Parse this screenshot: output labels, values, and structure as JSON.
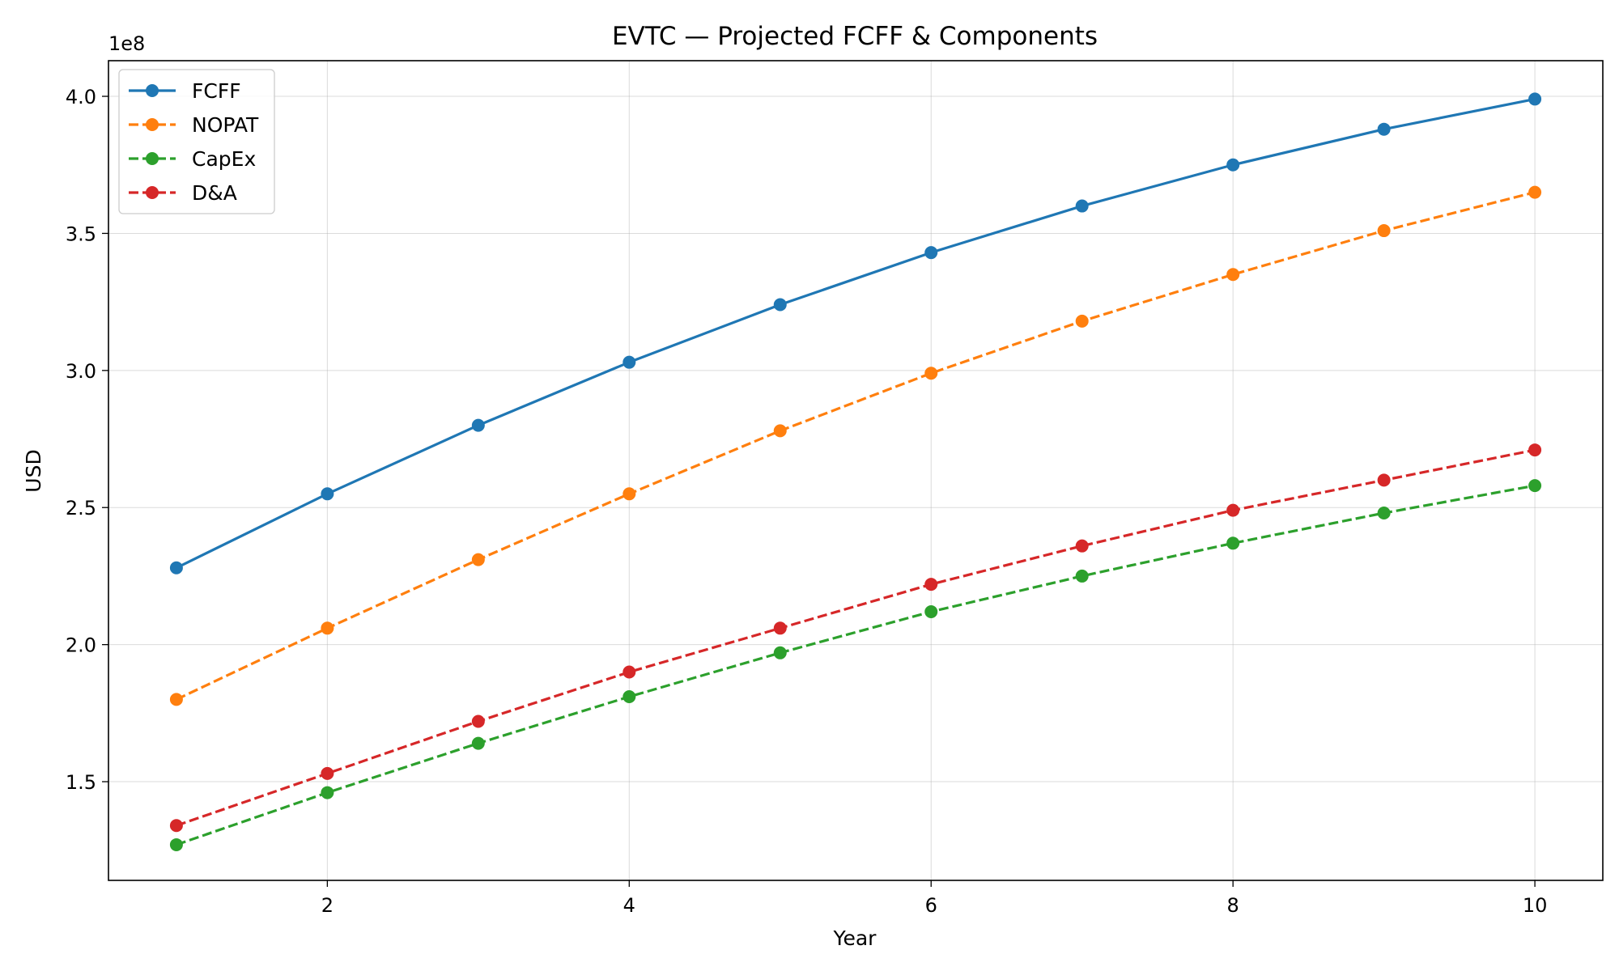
{
  "chart_data": {
    "type": "line",
    "title": "EVTC — Projected FCFF & Components",
    "xlabel": "Year",
    "ylabel": "USD",
    "y_offset_label": "1e8",
    "x": [
      1,
      2,
      3,
      4,
      5,
      6,
      7,
      8,
      9,
      10
    ],
    "xlim": [
      0.55,
      10.45
    ],
    "ylim": [
      1.14,
      4.13
    ],
    "x_ticks": [
      2,
      4,
      6,
      8,
      10
    ],
    "x_tick_labels": [
      "2",
      "4",
      "6",
      "8",
      "10"
    ],
    "y_ticks": [
      1.5,
      2.0,
      2.5,
      3.0,
      3.5,
      4.0
    ],
    "y_tick_labels": [
      "1.5",
      "2.0",
      "2.5",
      "3.0",
      "3.5",
      "4.0"
    ],
    "y_scale_note": "values in units of 1e8 USD",
    "grid": true,
    "legend_position": "top-left",
    "series": [
      {
        "name": "FCFF",
        "color": "#1f77b4",
        "linestyle": "solid",
        "marker": "circle",
        "values": [
          2.28,
          2.55,
          2.8,
          3.03,
          3.24,
          3.43,
          3.6,
          3.75,
          3.88,
          3.99
        ]
      },
      {
        "name": "NOPAT",
        "color": "#ff7f0e",
        "linestyle": "dashed",
        "marker": "circle",
        "values": [
          1.8,
          2.06,
          2.31,
          2.55,
          2.78,
          2.99,
          3.18,
          3.35,
          3.51,
          3.65
        ]
      },
      {
        "name": "CapEx",
        "color": "#2ca02c",
        "linestyle": "dashed",
        "marker": "circle",
        "values": [
          1.27,
          1.46,
          1.64,
          1.81,
          1.97,
          2.12,
          2.25,
          2.37,
          2.48,
          2.58
        ]
      },
      {
        "name": "D&A",
        "color": "#d62728",
        "linestyle": "dashed",
        "marker": "circle",
        "values": [
          1.34,
          1.53,
          1.72,
          1.9,
          2.06,
          2.22,
          2.36,
          2.49,
          2.6,
          2.71
        ]
      }
    ]
  }
}
